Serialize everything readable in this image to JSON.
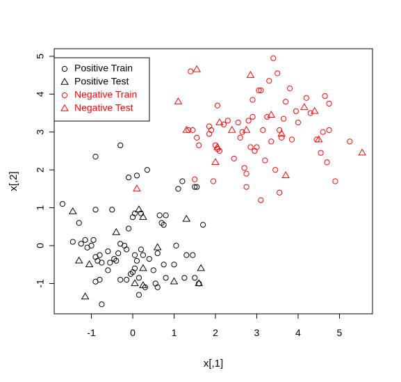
{
  "chart_data": {
    "type": "scatter",
    "xlabel": "x[,1]",
    "ylabel": "x[,2]",
    "xlim": [
      -1.9,
      5.8
    ],
    "ylim": [
      -1.8,
      5.2
    ],
    "x_ticks": [
      -1,
      0,
      1,
      2,
      3,
      4,
      5
    ],
    "y_ticks": [
      -1,
      0,
      1,
      2,
      3,
      4,
      5
    ],
    "legend_position": "top-left",
    "grid": false,
    "series": [
      {
        "name": "Positive Train",
        "marker": "circle",
        "color": "#000000",
        "points": [
          [
            -1.7,
            1.1
          ],
          [
            -1.3,
            0.6
          ],
          [
            -1.45,
            0.1
          ],
          [
            -1.25,
            0.05
          ],
          [
            -1.15,
            0.15
          ],
          [
            -1.1,
            -0.05
          ],
          [
            -1.0,
            0.0
          ],
          [
            -0.95,
            0.15
          ],
          [
            -0.9,
            -0.3
          ],
          [
            -0.85,
            -0.4
          ],
          [
            -0.8,
            -0.25
          ],
          [
            -0.75,
            -0.45
          ],
          [
            -0.9,
            -0.95
          ],
          [
            -0.8,
            -0.9
          ],
          [
            -0.75,
            -1.55
          ],
          [
            -0.9,
            2.35
          ],
          [
            -0.9,
            0.95
          ],
          [
            -0.5,
            0.95
          ],
          [
            -0.6,
            -0.15
          ],
          [
            -0.55,
            -0.45
          ],
          [
            -0.45,
            -0.35
          ],
          [
            -0.4,
            -0.4
          ],
          [
            -0.35,
            -0.2
          ],
          [
            -0.3,
            2.65
          ],
          [
            -0.3,
            -0.9
          ],
          [
            -0.2,
            0.0
          ],
          [
            -0.15,
            -0.1
          ],
          [
            -0.1,
            0.45
          ],
          [
            -0.15,
            -0.9
          ],
          [
            -0.05,
            -0.75
          ],
          [
            0.0,
            -0.7
          ],
          [
            0.0,
            0.75
          ],
          [
            0.05,
            0.85
          ],
          [
            0.05,
            -0.6
          ],
          [
            0.05,
            -0.25
          ],
          [
            -0.1,
            1.8
          ],
          [
            0.1,
            1.85
          ],
          [
            0.15,
            -1.3
          ],
          [
            0.2,
            -0.1
          ],
          [
            0.25,
            -0.25
          ],
          [
            0.3,
            -1.1
          ],
          [
            0.35,
            2.0
          ],
          [
            0.4,
            -0.35
          ],
          [
            0.5,
            -0.65
          ],
          [
            0.55,
            -1.0
          ],
          [
            0.6,
            -1.1
          ],
          [
            0.65,
            0.8
          ],
          [
            0.7,
            0.6
          ],
          [
            0.75,
            0.55
          ],
          [
            0.75,
            -0.5
          ],
          [
            0.8,
            0.8
          ],
          [
            0.8,
            -0.85
          ],
          [
            1.0,
            -0.5
          ],
          [
            1.05,
            0.0
          ],
          [
            1.1,
            1.5
          ],
          [
            1.2,
            1.7
          ],
          [
            1.25,
            -0.85
          ],
          [
            1.3,
            -0.25
          ],
          [
            1.45,
            -0.25
          ],
          [
            1.5,
            -0.85
          ],
          [
            1.55,
            1.55
          ],
          [
            1.6,
            -1.0
          ],
          [
            1.7,
            0.55
          ],
          [
            -0.6,
            -0.65
          ],
          [
            0.15,
            -0.85
          ],
          [
            0.2,
            0.85
          ],
          [
            0.6,
            -0.2
          ],
          [
            -0.3,
            0.05
          ],
          [
            1.5,
            1.55
          ],
          [
            0.1,
            -0.4
          ]
        ]
      },
      {
        "name": "Positive Test",
        "marker": "triangle",
        "color": "#000000",
        "points": [
          [
            -1.45,
            0.9
          ],
          [
            -1.3,
            -0.4
          ],
          [
            -1.15,
            -1.35
          ],
          [
            -1.05,
            -0.5
          ],
          [
            -0.4,
            0.35
          ],
          [
            0.05,
            -1.0
          ],
          [
            0.15,
            0.95
          ],
          [
            0.25,
            0.75
          ],
          [
            0.25,
            -1.05
          ],
          [
            0.25,
            -0.6
          ],
          [
            0.6,
            -0.05
          ],
          [
            1.0,
            -0.95
          ],
          [
            1.3,
            0.7
          ],
          [
            1.6,
            -1.0
          ],
          [
            1.65,
            -0.6
          ]
        ]
      },
      {
        "name": "Negative Train",
        "marker": "circle",
        "color": "#ff0000",
        "points": [
          [
            1.35,
            3.05
          ],
          [
            1.4,
            4.6
          ],
          [
            1.45,
            3.05
          ],
          [
            1.5,
            1.75
          ],
          [
            1.55,
            2.85
          ],
          [
            1.6,
            2.65
          ],
          [
            1.85,
            3.15
          ],
          [
            1.9,
            3.05
          ],
          [
            1.95,
            1.7
          ],
          [
            2.0,
            2.65
          ],
          [
            2.05,
            3.7
          ],
          [
            2.1,
            2.5
          ],
          [
            2.2,
            3.2
          ],
          [
            2.3,
            3.3
          ],
          [
            2.45,
            2.3
          ],
          [
            2.55,
            3.25
          ],
          [
            2.6,
            2.85
          ],
          [
            2.65,
            3.0
          ],
          [
            2.7,
            2.05
          ],
          [
            2.75,
            1.55
          ],
          [
            2.8,
            3.3
          ],
          [
            2.85,
            2.6
          ],
          [
            2.9,
            3.4
          ],
          [
            2.95,
            2.5
          ],
          [
            3.0,
            2.6
          ],
          [
            3.05,
            4.1
          ],
          [
            3.1,
            1.2
          ],
          [
            3.15,
            3.05
          ],
          [
            3.2,
            2.25
          ],
          [
            3.25,
            3.4
          ],
          [
            3.3,
            4.35
          ],
          [
            3.35,
            2.75
          ],
          [
            3.4,
            4.95
          ],
          [
            3.45,
            2.0
          ],
          [
            3.5,
            4.55
          ],
          [
            3.55,
            1.4
          ],
          [
            3.6,
            2.85
          ],
          [
            3.65,
            3.35
          ],
          [
            3.7,
            3.8
          ],
          [
            3.8,
            4.15
          ],
          [
            3.85,
            2.8
          ],
          [
            3.95,
            3.55
          ],
          [
            4.0,
            3.25
          ],
          [
            4.2,
            3.9
          ],
          [
            4.3,
            3.5
          ],
          [
            4.45,
            2.8
          ],
          [
            4.55,
            2.45
          ],
          [
            4.6,
            3.0
          ],
          [
            4.65,
            3.95
          ],
          [
            4.7,
            2.2
          ],
          [
            4.75,
            3.75
          ],
          [
            4.9,
            1.7
          ],
          [
            4.75,
            3.05
          ],
          [
            5.25,
            2.75
          ],
          [
            3.1,
            4.1
          ],
          [
            2.05,
            2.55
          ],
          [
            1.85,
            2.95
          ],
          [
            2.75,
            1.9
          ],
          [
            3.55,
            3.05
          ],
          [
            2.9,
            3.85
          ]
        ]
      },
      {
        "name": "Negative Test",
        "marker": "triangle",
        "color": "#ff0000",
        "points": [
          [
            0.1,
            1.5
          ],
          [
            1.1,
            3.8
          ],
          [
            1.3,
            3.05
          ],
          [
            1.55,
            4.65
          ],
          [
            2.0,
            2.2
          ],
          [
            2.05,
            2.6
          ],
          [
            2.1,
            3.25
          ],
          [
            2.4,
            3.05
          ],
          [
            2.75,
            3.05
          ],
          [
            2.85,
            4.5
          ],
          [
            3.35,
            3.45
          ],
          [
            3.6,
            2.95
          ],
          [
            3.7,
            1.85
          ],
          [
            4.15,
            3.65
          ],
          [
            4.4,
            3.55
          ],
          [
            4.5,
            2.8
          ],
          [
            5.55,
            2.45
          ]
        ]
      }
    ]
  }
}
